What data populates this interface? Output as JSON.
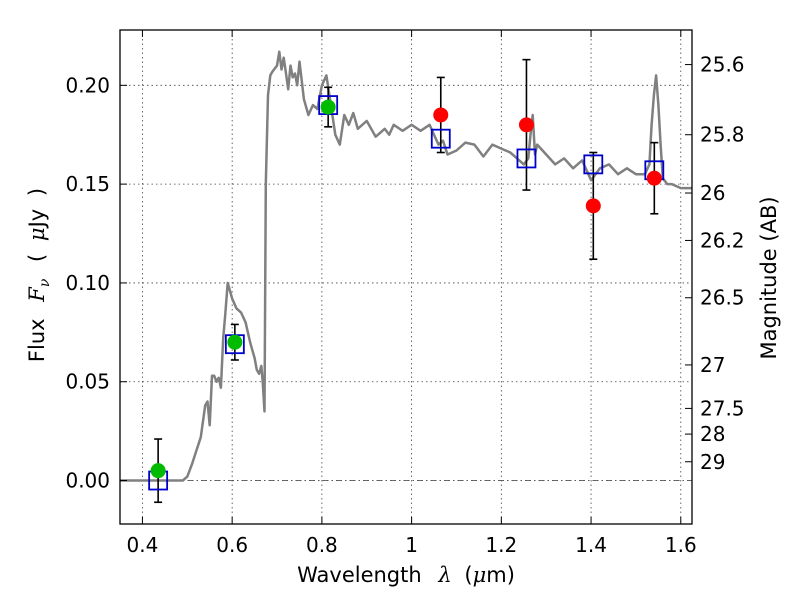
{
  "chart_data": {
    "type": "scatter",
    "xlabel": {
      "text": "Wavelength",
      "symbol": "λ",
      "unit_open": "(",
      "unit_mu": "μ",
      "unit_rest": "m)"
    },
    "ylabel": {
      "text": "Flux",
      "symbol": "F",
      "subscript": "ν",
      "unit_open": "(",
      "unit_mu": "μ",
      "unit_rest": "Jy",
      "unit_close": ")"
    },
    "y2label": "Magnitude (AB)",
    "xlim": [
      0.35,
      1.625
    ],
    "ylim": [
      -0.022,
      0.228
    ],
    "grid": true,
    "x_ticks": [
      0.4,
      0.6,
      0.8,
      1.0,
      1.2,
      1.4,
      1.6
    ],
    "x_tick_labels": [
      "0.4",
      "0.6",
      "0.8",
      "1",
      "1.2",
      "1.4",
      "1.6"
    ],
    "y_ticks": [
      0.0,
      0.05,
      0.1,
      0.15,
      0.2
    ],
    "y_tick_labels": [
      "0.00",
      "0.05",
      "0.10",
      "0.15",
      "0.20"
    ],
    "y2_ticks": [
      {
        "flux": 0.2105,
        "label": "25.6"
      },
      {
        "flux": 0.175,
        "label": "25.8"
      },
      {
        "flux": 0.1455,
        "label": "26"
      },
      {
        "flux": 0.1215,
        "label": "26.2"
      },
      {
        "flux": 0.0925,
        "label": "26.5"
      },
      {
        "flux": 0.0585,
        "label": "27"
      },
      {
        "flux": 0.0365,
        "label": "27.5"
      },
      {
        "flux": 0.0235,
        "label": "28"
      },
      {
        "flux": 0.0095,
        "label": "29"
      }
    ],
    "series": [
      {
        "kind": "model_spectrum",
        "color": "#808080",
        "x": [
          0.35,
          0.49,
          0.5,
          0.51,
          0.52,
          0.53,
          0.54,
          0.545,
          0.55,
          0.555,
          0.56,
          0.565,
          0.57,
          0.575,
          0.58,
          0.585,
          0.59,
          0.6,
          0.61,
          0.62,
          0.63,
          0.64,
          0.645,
          0.65,
          0.655,
          0.66,
          0.665,
          0.668,
          0.672,
          0.675,
          0.68,
          0.685,
          0.69,
          0.7,
          0.705,
          0.71,
          0.715,
          0.72,
          0.725,
          0.73,
          0.735,
          0.74,
          0.745,
          0.75,
          0.76,
          0.77,
          0.78,
          0.79,
          0.8,
          0.81,
          0.82,
          0.83,
          0.84,
          0.85,
          0.86,
          0.87,
          0.88,
          0.9,
          0.92,
          0.94,
          0.95,
          0.96,
          0.98,
          1.0,
          1.02,
          1.04,
          1.05,
          1.06,
          1.07,
          1.08,
          1.1,
          1.12,
          1.14,
          1.16,
          1.18,
          1.2,
          1.22,
          1.24,
          1.25,
          1.26,
          1.265,
          1.27,
          1.275,
          1.28,
          1.3,
          1.32,
          1.34,
          1.36,
          1.38,
          1.4,
          1.42,
          1.44,
          1.46,
          1.48,
          1.5,
          1.52,
          1.53,
          1.535,
          1.54,
          1.545,
          1.55,
          1.555,
          1.56,
          1.57,
          1.58,
          1.6,
          1.625
        ],
        "y": [
          0.0,
          0.0,
          0.002,
          0.008,
          0.015,
          0.022,
          0.038,
          0.04,
          0.028,
          0.053,
          0.053,
          0.05,
          0.052,
          0.047,
          0.072,
          0.085,
          0.1,
          0.092,
          0.087,
          0.085,
          0.08,
          0.07,
          0.066,
          0.062,
          0.056,
          0.054,
          0.058,
          0.05,
          0.035,
          0.15,
          0.195,
          0.205,
          0.207,
          0.21,
          0.217,
          0.208,
          0.214,
          0.206,
          0.198,
          0.21,
          0.204,
          0.206,
          0.2,
          0.212,
          0.193,
          0.185,
          0.19,
          0.188,
          0.2,
          0.205,
          0.19,
          0.175,
          0.17,
          0.185,
          0.18,
          0.186,
          0.178,
          0.182,
          0.174,
          0.178,
          0.175,
          0.18,
          0.177,
          0.18,
          0.177,
          0.18,
          0.175,
          0.17,
          0.172,
          0.165,
          0.167,
          0.171,
          0.17,
          0.164,
          0.17,
          0.168,
          0.166,
          0.162,
          0.16,
          0.163,
          0.175,
          0.185,
          0.165,
          0.17,
          0.165,
          0.16,
          0.163,
          0.158,
          0.162,
          0.152,
          0.158,
          0.16,
          0.155,
          0.158,
          0.155,
          0.155,
          0.16,
          0.18,
          0.195,
          0.205,
          0.19,
          0.17,
          0.153,
          0.15,
          0.15,
          0.148,
          0.148
        ]
      },
      {
        "kind": "model_bands",
        "color": "#0000cc",
        "marker": "open-square",
        "x": [
          0.435,
          0.606,
          0.814,
          1.065,
          1.256,
          1.405,
          1.541
        ],
        "y": [
          0.0,
          0.069,
          0.19,
          0.173,
          0.163,
          0.16,
          0.157
        ]
      },
      {
        "kind": "detections",
        "color": "#00bb00",
        "marker": "filled-circle",
        "x": [
          0.435,
          0.606,
          0.814
        ],
        "y": [
          0.005,
          0.07,
          0.189
        ],
        "err": [
          0.016,
          0.009,
          0.01
        ]
      },
      {
        "kind": "detections",
        "color": "#ff0000",
        "marker": "filled-circle",
        "x": [
          1.065,
          1.256,
          1.405,
          1.541
        ],
        "y": [
          0.185,
          0.18,
          0.139,
          0.153
        ],
        "err": [
          0.019,
          0.033,
          0.027,
          0.018
        ]
      }
    ],
    "reference_line": {
      "y": 0.0,
      "style": "dash-dot",
      "color": "#555555"
    },
    "error_bar_color": "#000000"
  }
}
